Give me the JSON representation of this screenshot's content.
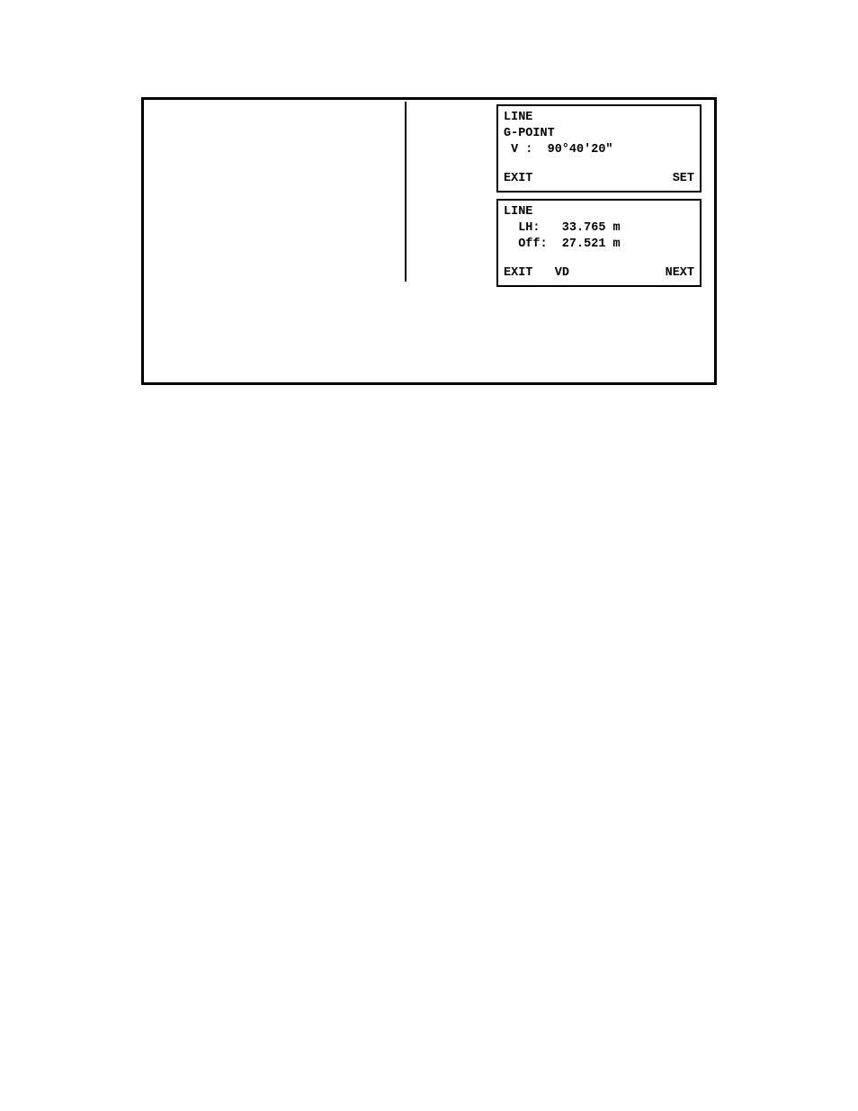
{
  "panel1": {
    "title": "LINE",
    "subtitle": "G-POINT",
    "value_line": " V :  90°40'20\"",
    "btn_left": "EXIT",
    "btn_right": "SET"
  },
  "panel2": {
    "title": "LINE",
    "line1": "  LH:   33.765 m",
    "line2": "  Off:  27.521 m",
    "btn_left": "EXIT",
    "btn_mid": "VD",
    "btn_right": "NEXT"
  },
  "colors": {
    "border": "#000000",
    "background": "#ffffff",
    "text": "#000000"
  },
  "fonts": {
    "family": "Courier New",
    "size_pt": 10,
    "weight": "bold"
  }
}
